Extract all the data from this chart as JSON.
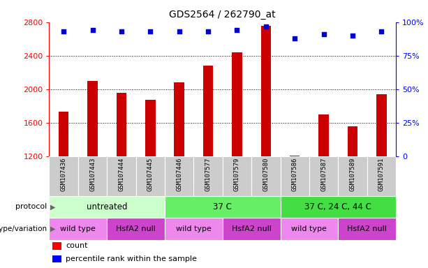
{
  "title": "GDS2564 / 262790_at",
  "samples": [
    "GSM107436",
    "GSM107443",
    "GSM107444",
    "GSM107445",
    "GSM107446",
    "GSM107577",
    "GSM107579",
    "GSM107580",
    "GSM107586",
    "GSM107587",
    "GSM107589",
    "GSM107591"
  ],
  "counts": [
    1730,
    2100,
    1960,
    1870,
    2080,
    2280,
    2440,
    2760,
    1210,
    1700,
    1560,
    1940
  ],
  "percentile_ranks": [
    93,
    94,
    93,
    93,
    93,
    93,
    94,
    97,
    88,
    91,
    90,
    93
  ],
  "ylim_left": [
    1200,
    2800
  ],
  "ylim_right": [
    0,
    100
  ],
  "yticks_left": [
    1200,
    1600,
    2000,
    2400,
    2800
  ],
  "yticks_right": [
    0,
    25,
    50,
    75,
    100
  ],
  "bar_color": "#cc0000",
  "dot_color": "#0000cc",
  "protocol_groups": [
    {
      "label": "untreated",
      "start": 0,
      "end": 3,
      "color": "#ccffcc"
    },
    {
      "label": "37 C",
      "start": 4,
      "end": 7,
      "color": "#66ee66"
    },
    {
      "label": "37 C, 24 C, 44 C",
      "start": 8,
      "end": 11,
      "color": "#44dd44"
    }
  ],
  "genotype_groups": [
    {
      "label": "wild type",
      "start": 0,
      "end": 1,
      "color": "#ee88ee"
    },
    {
      "label": "HsfA2 null",
      "start": 2,
      "end": 3,
      "color": "#cc44cc"
    },
    {
      "label": "wild type",
      "start": 4,
      "end": 5,
      "color": "#ee88ee"
    },
    {
      "label": "HsfA2 null",
      "start": 6,
      "end": 7,
      "color": "#cc44cc"
    },
    {
      "label": "wild type",
      "start": 8,
      "end": 9,
      "color": "#ee88ee"
    },
    {
      "label": "HsfA2 null",
      "start": 10,
      "end": 11,
      "color": "#cc44cc"
    }
  ],
  "sample_bg_color": "#cccccc",
  "label_protocol": "protocol",
  "label_genotype": "genotype/variation",
  "legend_count": "count",
  "legend_percentile": "percentile rank within the sample",
  "fig_width": 6.13,
  "fig_height": 3.84,
  "dpi": 100
}
